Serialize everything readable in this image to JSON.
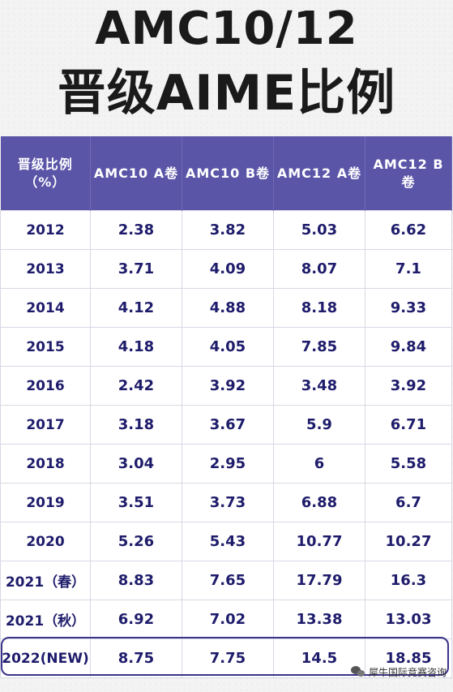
{
  "title": {
    "line1": "AMC10/12",
    "line2": "晋级AIME比例"
  },
  "table": {
    "headers": [
      "晋级比例（%）",
      "AMC10 A卷",
      "AMC10 B卷",
      "AMC12 A卷",
      "AMC12 B卷"
    ],
    "rows": [
      [
        "2012",
        "2.38",
        "3.82",
        "5.03",
        "6.62"
      ],
      [
        "2013",
        "3.71",
        "4.09",
        "8.07",
        "7.1"
      ],
      [
        "2014",
        "4.12",
        "4.88",
        "8.18",
        "9.33"
      ],
      [
        "2015",
        "4.18",
        "4.05",
        "7.85",
        "9.84"
      ],
      [
        "2016",
        "2.42",
        "3.92",
        "3.48",
        "3.92"
      ],
      [
        "2017",
        "3.18",
        "3.67",
        "5.9",
        "6.71"
      ],
      [
        "2018",
        "3.04",
        "2.95",
        "6",
        "5.58"
      ],
      [
        "2019",
        "3.51",
        "3.73",
        "6.88",
        "6.7"
      ],
      [
        "2020",
        "5.26",
        "5.43",
        "10.77",
        "10.27"
      ],
      [
        "2021（春）",
        "8.83",
        "7.65",
        "17.79",
        "16.3"
      ],
      [
        "2021（秋）",
        "6.92",
        "7.02",
        "13.38",
        "13.03"
      ],
      [
        "2022(NEW)",
        "8.75",
        "7.75",
        "14.5",
        "18.85"
      ]
    ]
  },
  "watermark": {
    "icon": "wechat-icon",
    "text": "犀牛国际竞赛咨询"
  },
  "colors": {
    "header_bg": "#5b55a8",
    "cell_text": "#1e1c6b",
    "highlight_border": "#3a3388"
  }
}
